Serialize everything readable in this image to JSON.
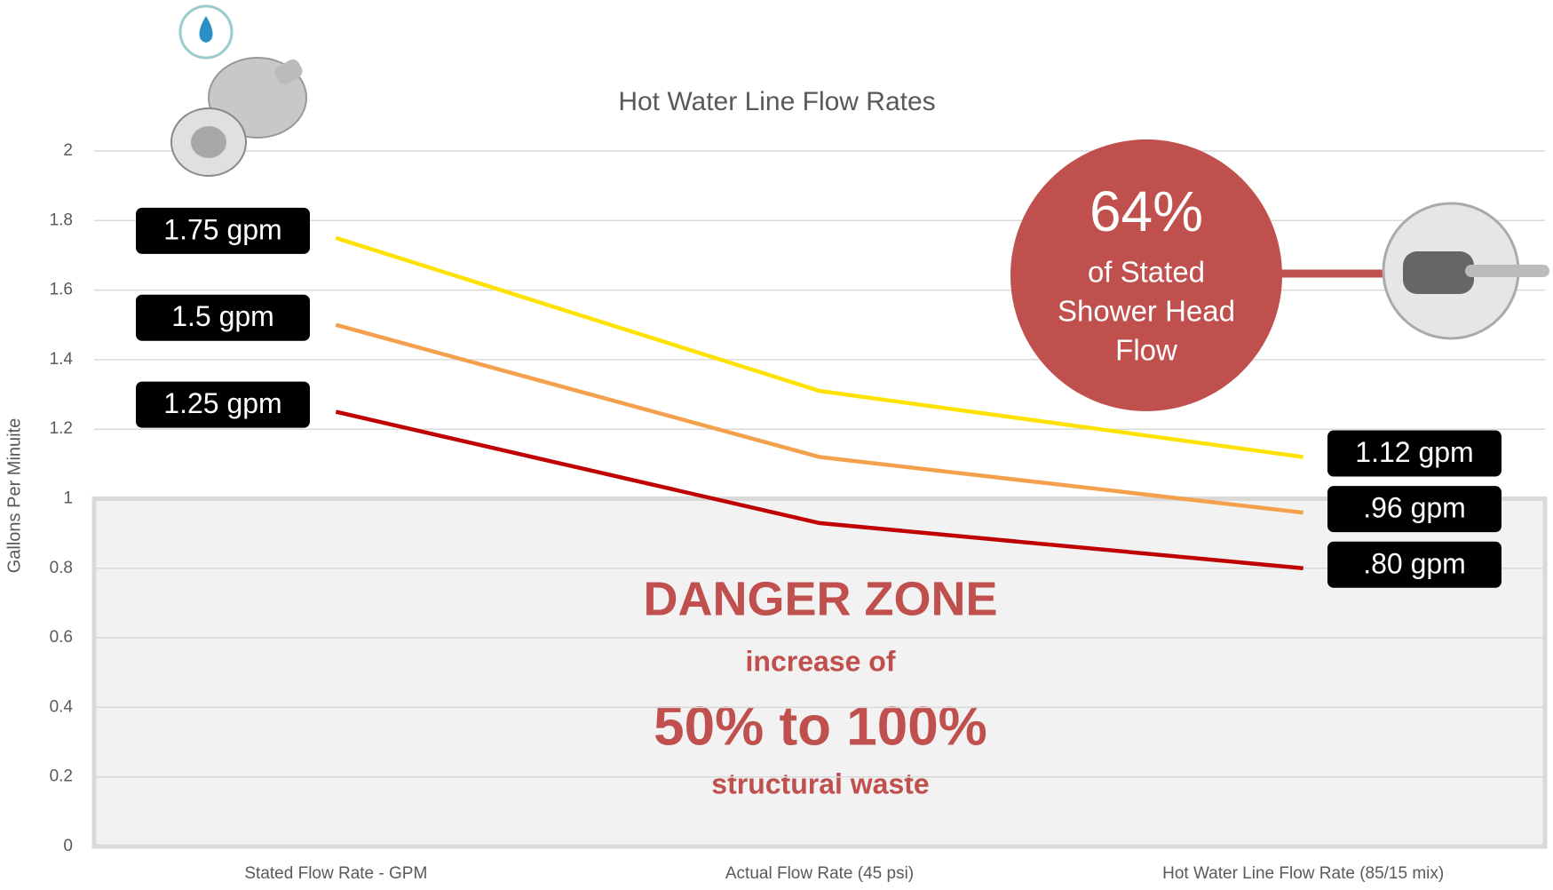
{
  "chart_data": {
    "type": "line",
    "title": "Hot Water Line Flow Rates",
    "y_label": "Gallons Per Minuite",
    "categories": [
      "Stated Flow Rate - GPM",
      "Actual Flow Rate (45 psi)",
      "Hot Water Line Flow Rate (85/15 mix)"
    ],
    "series": [
      {
        "color": "#ffe200",
        "values": [
          1.75,
          1.31,
          1.12
        ],
        "value_labels": [
          "1.75 gpm",
          null,
          "1.12 gpm"
        ]
      },
      {
        "color": "#f4a04c",
        "values": [
          1.5,
          1.12,
          0.96
        ],
        "value_labels": [
          "1.5 gpm",
          null,
          ".96 gpm"
        ]
      },
      {
        "color": "#c00000",
        "values": [
          1.25,
          0.93,
          0.8
        ],
        "value_labels": [
          "1.25 gpm",
          null,
          ".80 gpm"
        ]
      }
    ],
    "ylim": [
      0,
      2
    ],
    "yticks": [
      0,
      0.2,
      0.4,
      0.6,
      0.8,
      1,
      1.2,
      1.4,
      1.6,
      1.8,
      2
    ],
    "grid": true,
    "danger_zone": {
      "range": [
        0,
        1
      ],
      "title": "DANGER ZONE",
      "line1": "increase of",
      "big": "50% to 100%",
      "line2": "structural waste"
    },
    "callout": {
      "percent": "64%",
      "lines": [
        "of Stated",
        "Shower Head",
        "Flow"
      ]
    }
  }
}
